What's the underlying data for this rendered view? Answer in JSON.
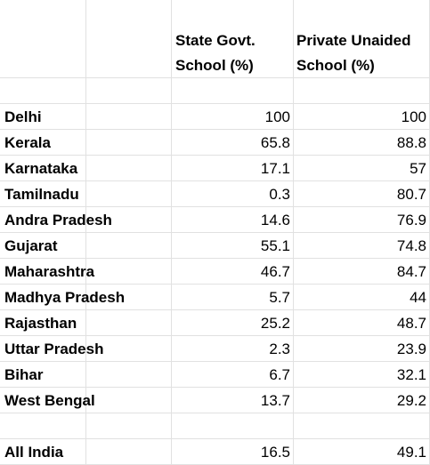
{
  "table": {
    "headers": {
      "col2_line1": "State Govt.",
      "col2_line2": "School (%)",
      "col3_line1": "Private Unaided",
      "col3_line2": "School (%)"
    },
    "rows": [
      {
        "state": "Delhi",
        "govt": "100",
        "private": "100"
      },
      {
        "state": "Kerala",
        "govt": "65.8",
        "private": "88.8"
      },
      {
        "state": "Karnataka",
        "govt": "17.1",
        "private": "57"
      },
      {
        "state": "Tamilnadu",
        "govt": "0.3",
        "private": "80.7"
      },
      {
        "state": "Andra Pradesh",
        "govt": "14.6",
        "private": "76.9"
      },
      {
        "state": "Gujarat",
        "govt": "55.1",
        "private": "74.8"
      },
      {
        "state": "Maharashtra",
        "govt": "46.7",
        "private": "84.7"
      },
      {
        "state": "Madhya Pradesh",
        "govt": "5.7",
        "private": "44"
      },
      {
        "state": "Rajasthan",
        "govt": "25.2",
        "private": "48.7"
      },
      {
        "state": "Uttar Pradesh",
        "govt": "2.3",
        "private": "23.9"
      },
      {
        "state": "Bihar",
        "govt": "6.7",
        "private": "32.1"
      },
      {
        "state": "West Bengal",
        "govt": "13.7",
        "private": "29.2"
      }
    ],
    "total": {
      "state": "All India",
      "govt": "16.5",
      "private": "49.1"
    }
  }
}
